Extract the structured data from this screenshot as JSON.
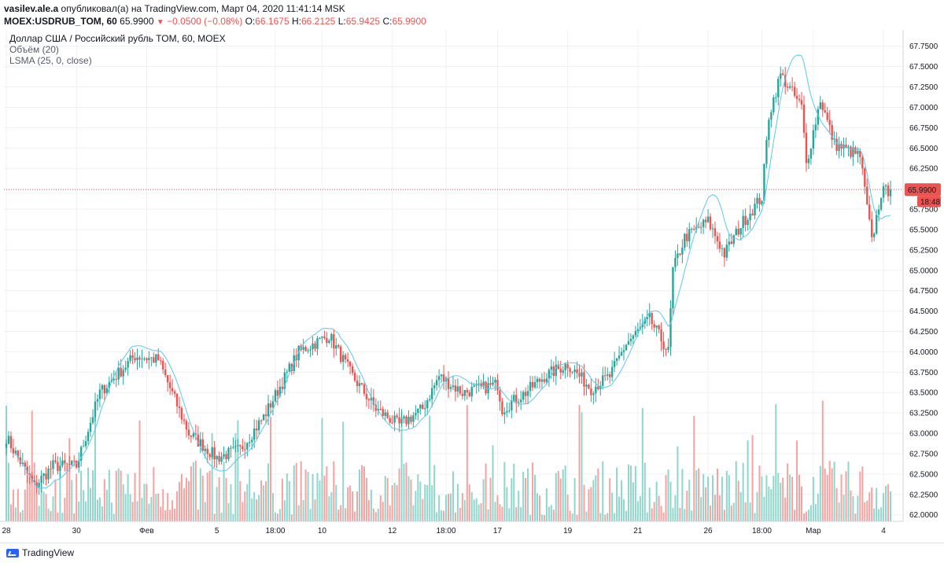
{
  "header": {
    "author": "vasilev.ale.a",
    "published_text": "опубликовал(а) на TradingView.com, Март 04, 2020 11:41:14 MSK",
    "symbol": "MOEX:USDRUB_TOM, 60",
    "last": "65.9900",
    "change_arrow": "▼",
    "change": "−0.0500 (−0.08%)",
    "o_label": "O:",
    "o": "66.1675",
    "h_label": "H:",
    "h": "66.2125",
    "l_label": "L:",
    "l": "65.9425",
    "c_label": "C:",
    "c": "65.9900"
  },
  "legend": {
    "title": "Доллар США / Российский рубль TOM, 60, MOEX",
    "volume": "Объём (20)",
    "lsma": "LSMA (25, 0, close)"
  },
  "footer": {
    "brand": "TradingView"
  },
  "colors": {
    "up": "#26a69a",
    "down": "#ef5350",
    "up_volume": "#8fd6cc",
    "down_volume": "#f5a3a1",
    "lsma": "#5ac8f0",
    "grid": "#eef0f4",
    "price_line": "#ef5350"
  },
  "chart_data": {
    "type": "candlestick",
    "y_axis": {
      "ticks": [
        "67.7500",
        "67.5000",
        "67.2500",
        "67.0000",
        "66.7500",
        "66.5000",
        "66.2500",
        "66.0000",
        "65.7500",
        "65.5000",
        "65.2500",
        "65.0000",
        "64.7500",
        "64.5000",
        "64.2500",
        "64.0000",
        "63.7500",
        "63.5000",
        "63.2500",
        "63.0000",
        "62.7500",
        "62.5000",
        "62.2500",
        "62.0000"
      ],
      "tick_values": [
        67.75,
        67.5,
        67.25,
        67.0,
        66.75,
        66.5,
        66.25,
        66.0,
        65.75,
        65.5,
        65.25,
        65.0,
        64.75,
        64.5,
        64.25,
        64.0,
        63.75,
        63.5,
        63.25,
        63.0,
        62.75,
        62.5,
        62.25,
        62.0
      ],
      "ylim": [
        61.92,
        67.95
      ]
    },
    "x_axis": {
      "labels": [
        {
          "text": "28",
          "bar": 0
        },
        {
          "text": "30",
          "bar": 30
        },
        {
          "text": "Фев",
          "bar": 60
        },
        {
          "text": "5",
          "bar": 90
        },
        {
          "text": "18:00",
          "bar": 115
        },
        {
          "text": "10",
          "bar": 135
        },
        {
          "text": "12",
          "bar": 165
        },
        {
          "text": "18:00",
          "bar": 188
        },
        {
          "text": "17",
          "bar": 210
        },
        {
          "text": "19",
          "bar": 240
        },
        {
          "text": "21",
          "bar": 270
        },
        {
          "text": "26",
          "bar": 300
        },
        {
          "text": "18:00",
          "bar": 323
        },
        {
          "text": "Мар",
          "bar": 345
        },
        {
          "text": "4",
          "bar": 375
        }
      ],
      "bar_count": 379
    },
    "current_price": {
      "value": 65.99,
      "label": "65.9900",
      "countdown": "18:48"
    },
    "closes_anchor": [
      [
        0,
        62.95
      ],
      [
        12,
        62.35
      ],
      [
        20,
        62.6
      ],
      [
        30,
        62.6
      ],
      [
        40,
        63.5
      ],
      [
        55,
        63.95
      ],
      [
        65,
        63.9
      ],
      [
        78,
        63.0
      ],
      [
        90,
        62.7
      ],
      [
        100,
        62.8
      ],
      [
        110,
        63.2
      ],
      [
        125,
        64.0
      ],
      [
        138,
        64.2
      ],
      [
        148,
        63.7
      ],
      [
        158,
        63.3
      ],
      [
        168,
        63.1
      ],
      [
        178,
        63.3
      ],
      [
        185,
        63.7
      ],
      [
        195,
        63.5
      ],
      [
        210,
        63.6
      ],
      [
        212,
        63.3
      ],
      [
        222,
        63.5
      ],
      [
        230,
        63.7
      ],
      [
        240,
        63.85
      ],
      [
        250,
        63.55
      ],
      [
        258,
        63.7
      ],
      [
        265,
        64.1
      ],
      [
        275,
        64.4
      ],
      [
        283,
        64.0
      ],
      [
        285,
        65.0
      ],
      [
        290,
        65.4
      ],
      [
        300,
        65.6
      ],
      [
        307,
        65.2
      ],
      [
        315,
        65.6
      ],
      [
        323,
        65.9
      ],
      [
        326,
        66.9
      ],
      [
        331,
        67.4
      ],
      [
        340,
        67.0
      ],
      [
        342,
        66.3
      ],
      [
        348,
        67.1
      ],
      [
        354,
        66.55
      ],
      [
        365,
        66.4
      ],
      [
        370,
        65.35
      ],
      [
        374,
        65.95
      ],
      [
        378,
        65.99
      ]
    ],
    "price_range": {
      "min": 62.35,
      "max": 67.65
    },
    "volume_range": {
      "min_bar_height_ratio": 0.05,
      "max_bar_height_ratio": 1.0
    },
    "lsma_period": 25
  }
}
